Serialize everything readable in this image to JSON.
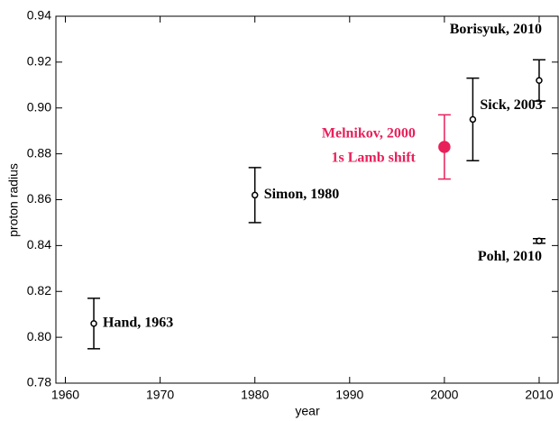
{
  "chart_data": {
    "type": "scatter",
    "x_label": "year",
    "y_label": "proton radius",
    "xlim": [
      1959,
      2012
    ],
    "ylim": [
      0.78,
      0.94
    ],
    "xticks": [
      1960,
      1970,
      1980,
      1990,
      2000,
      2010
    ],
    "yticks": [
      0.78,
      {
        "value": 0.8,
        "label": "0.80"
      },
      0.82,
      0.84,
      0.86,
      0.88,
      {
        "value": 0.9,
        "label": "0.90"
      },
      0.92,
      0.94
    ],
    "series": [
      {
        "name": "Hand, 1963",
        "color": "#000000",
        "x": [
          1963
        ],
        "values": [
          0.806
        ],
        "errors": [
          0.011
        ]
      },
      {
        "name": "Simon, 1980",
        "color": "#000000",
        "x": [
          1980
        ],
        "values": [
          0.862
        ],
        "errors": [
          0.012
        ]
      },
      {
        "name": "Melnikov, 2000",
        "note": "1s Lamb shift",
        "color": "#e8205a",
        "x": [
          2000
        ],
        "values": [
          0.883
        ],
        "errors": [
          0.014
        ]
      },
      {
        "name": "Sick, 2003",
        "color": "#000000",
        "x": [
          2003
        ],
        "values": [
          0.895
        ],
        "errors": [
          0.018
        ]
      },
      {
        "name": "Borisyuk, 2010",
        "color": "#000000",
        "x": [
          2010
        ],
        "values": [
          0.912
        ],
        "errors": [
          0.009
        ]
      },
      {
        "name": "Pohl, 2010",
        "color": "#000000",
        "x": [
          2010
        ],
        "values": [
          0.842
        ],
        "errors": [
          0.001
        ]
      }
    ]
  }
}
